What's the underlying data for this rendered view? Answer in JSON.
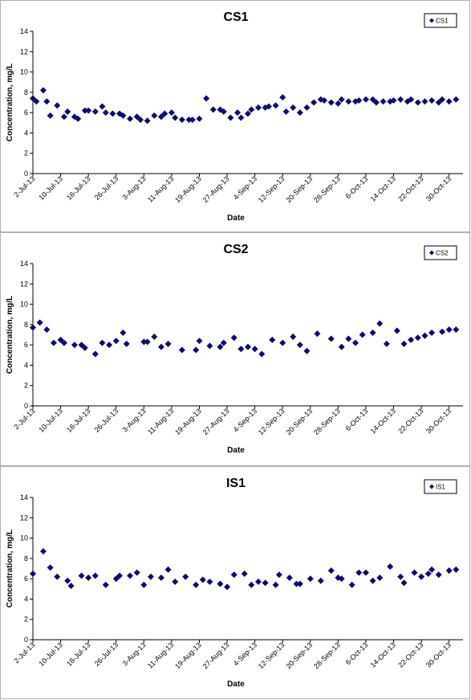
{
  "page": {
    "background": "#ffffff",
    "marker_color": "#0a0a6e"
  },
  "chart_data": [
    {
      "type": "scatter",
      "title": "CS1",
      "xlabel": "Date",
      "ylabel": "Concentration, mg/L",
      "ylim": [
        0,
        14
      ],
      "yticks": [
        0,
        2,
        4,
        6,
        8,
        10,
        12,
        14
      ],
      "xlim": [
        "2013-07-02",
        "2013-11-03"
      ],
      "xtick_labels": [
        "2-Jul-13",
        "10-Jul-13",
        "18-Jul-13",
        "26-Jul-13",
        "3-Aug-13",
        "11-Aug-13",
        "19-Aug-13",
        "27-Aug-13",
        "4-Sep-13",
        "12-Sep-13",
        "20-Sep-13",
        "28-Sep-13",
        "6-Oct-13",
        "14-Oct-13",
        "22-Oct-13",
        "30-Oct-13"
      ],
      "grid": false,
      "legend": "top-right",
      "series": [
        {
          "name": "CS1",
          "marker": "diamond",
          "color": "#0a0a6e",
          "x": [
            "2013-07-02",
            "2013-07-03",
            "2013-07-05",
            "2013-07-06",
            "2013-07-07",
            "2013-07-09",
            "2013-07-11",
            "2013-07-12",
            "2013-07-14",
            "2013-07-15",
            "2013-07-17",
            "2013-07-18",
            "2013-07-20",
            "2013-07-22",
            "2013-07-23",
            "2013-07-25",
            "2013-07-27",
            "2013-07-28",
            "2013-07-30",
            "2013-08-01",
            "2013-08-02",
            "2013-08-04",
            "2013-08-06",
            "2013-08-08",
            "2013-08-09",
            "2013-08-11",
            "2013-08-12",
            "2013-08-14",
            "2013-08-16",
            "2013-08-17",
            "2013-08-19",
            "2013-08-21",
            "2013-08-23",
            "2013-08-25",
            "2013-08-26",
            "2013-08-28",
            "2013-08-30",
            "2013-08-31",
            "2013-09-02",
            "2013-09-03",
            "2013-09-05",
            "2013-09-07",
            "2013-09-08",
            "2013-09-10",
            "2013-09-12",
            "2013-09-13",
            "2013-09-15",
            "2013-09-17",
            "2013-09-19",
            "2013-09-21",
            "2013-09-23",
            "2013-09-24",
            "2013-09-26",
            "2013-09-28",
            "2013-09-29",
            "2013-10-01",
            "2013-10-03",
            "2013-10-04",
            "2013-10-06",
            "2013-10-08",
            "2013-10-09",
            "2013-10-11",
            "2013-10-13",
            "2013-10-14",
            "2013-10-16",
            "2013-10-18",
            "2013-10-19",
            "2013-10-21",
            "2013-10-23",
            "2013-10-25",
            "2013-10-27",
            "2013-10-28",
            "2013-10-30",
            "2013-11-01"
          ],
          "y": [
            7.4,
            7.1,
            8.2,
            7.1,
            5.7,
            6.7,
            5.6,
            6.1,
            5.6,
            5.4,
            6.2,
            6.2,
            6.1,
            6.6,
            6.0,
            5.9,
            5.9,
            5.7,
            5.4,
            5.6,
            5.3,
            5.2,
            5.7,
            5.6,
            5.9,
            6.0,
            5.5,
            5.3,
            5.3,
            5.3,
            5.4,
            7.4,
            6.3,
            6.3,
            6.1,
            5.5,
            6.0,
            5.5,
            5.9,
            6.3,
            6.5,
            6.5,
            6.6,
            6.7,
            7.5,
            6.1,
            6.5,
            6.0,
            6.5,
            7.0,
            7.3,
            7.2,
            7.0,
            6.9,
            7.3,
            7.1,
            7.1,
            7.2,
            7.3,
            7.3,
            7.0,
            7.1,
            7.1,
            7.2,
            7.3,
            7.1,
            7.3,
            7.0,
            7.1,
            7.2,
            7.0,
            7.3,
            7.1,
            7.3
          ]
        }
      ]
    },
    {
      "type": "scatter",
      "title": "CS2",
      "xlabel": "Date",
      "ylabel": "Concentration, mg/L",
      "ylim": [
        0,
        14
      ],
      "yticks": [
        0,
        2,
        4,
        6,
        8,
        10,
        12,
        14
      ],
      "xlim": [
        "2013-07-02",
        "2013-11-03"
      ],
      "xtick_labels": [
        "2-Jul-13",
        "10-Jul-13",
        "18-Jul-13",
        "26-Jul-13",
        "3-Aug-13",
        "11-Aug-13",
        "19-Aug-13",
        "27-Aug-13",
        "4-Sep-13",
        "12-Sep-13",
        "20-Sep-13",
        "28-Sep-13",
        "6-Oct-13",
        "14-Oct-13",
        "22-Oct-13",
        "30-Oct-13"
      ],
      "grid": false,
      "legend": "top-right",
      "series": [
        {
          "name": "CS2",
          "marker": "diamond",
          "color": "#0a0a6e",
          "x": [
            "2013-07-02",
            "2013-07-04",
            "2013-07-06",
            "2013-07-08",
            "2013-07-10",
            "2013-07-11",
            "2013-07-14",
            "2013-07-16",
            "2013-07-17",
            "2013-07-20",
            "2013-07-22",
            "2013-07-24",
            "2013-07-26",
            "2013-07-28",
            "2013-07-29",
            "2013-08-03",
            "2013-08-04",
            "2013-08-06",
            "2013-08-08",
            "2013-08-10",
            "2013-08-14",
            "2013-08-18",
            "2013-08-19",
            "2013-08-22",
            "2013-08-25",
            "2013-08-26",
            "2013-08-29",
            "2013-08-31",
            "2013-09-02",
            "2013-09-04",
            "2013-09-06",
            "2013-09-09",
            "2013-09-12",
            "2013-09-15",
            "2013-09-17",
            "2013-09-19",
            "2013-09-22",
            "2013-09-26",
            "2013-09-29",
            "2013-10-01",
            "2013-10-03",
            "2013-10-05",
            "2013-10-08",
            "2013-10-10",
            "2013-10-12",
            "2013-10-15",
            "2013-10-17",
            "2013-10-19",
            "2013-10-21",
            "2013-10-23",
            "2013-10-25",
            "2013-10-28",
            "2013-10-30",
            "2013-11-01"
          ],
          "y": [
            7.7,
            8.2,
            7.5,
            6.2,
            6.5,
            6.2,
            6.0,
            6.0,
            5.7,
            5.1,
            6.2,
            6.0,
            6.4,
            7.2,
            6.1,
            6.3,
            6.3,
            6.8,
            5.8,
            6.1,
            5.5,
            5.5,
            6.4,
            5.9,
            5.8,
            6.2,
            6.7,
            5.6,
            5.8,
            5.6,
            5.1,
            6.5,
            6.2,
            6.8,
            6.0,
            5.4,
            7.1,
            6.6,
            5.8,
            6.6,
            6.2,
            7.0,
            7.2,
            8.1,
            6.1,
            7.4,
            6.1,
            6.5,
            6.7,
            6.9,
            7.2,
            7.3,
            7.5,
            7.5
          ]
        }
      ]
    },
    {
      "type": "scatter",
      "title": "IS1",
      "xlabel": "Date",
      "ylabel": "Concentration, mg/L",
      "ylim": [
        0,
        14
      ],
      "yticks": [
        0,
        2,
        4,
        6,
        8,
        10,
        12,
        14
      ],
      "xlim": [
        "2013-07-02",
        "2013-11-03"
      ],
      "xtick_labels": [
        "2-Jul-13",
        "10-Jul-13",
        "18-Jul-13",
        "26-Jul-13",
        "3-Aug-13",
        "11-Aug-13",
        "19-Aug-13",
        "27-Aug-13",
        "4-Sep-13",
        "12-Sep-13",
        "20-Sep-13",
        "28-Sep-13",
        "6-Oct-13",
        "14-Oct-13",
        "22-Oct-13",
        "30-Oct-13"
      ],
      "grid": false,
      "legend": "top-right",
      "series": [
        {
          "name": "IS1",
          "marker": "diamond",
          "color": "#0a0a6e",
          "x": [
            "2013-07-02",
            "2013-07-05",
            "2013-07-07",
            "2013-07-09",
            "2013-07-12",
            "2013-07-13",
            "2013-07-16",
            "2013-07-18",
            "2013-07-20",
            "2013-07-23",
            "2013-07-26",
            "2013-07-27",
            "2013-07-30",
            "2013-08-01",
            "2013-08-03",
            "2013-08-05",
            "2013-08-08",
            "2013-08-10",
            "2013-08-12",
            "2013-08-15",
            "2013-08-18",
            "2013-08-20",
            "2013-08-22",
            "2013-08-25",
            "2013-08-27",
            "2013-08-29",
            "2013-09-01",
            "2013-09-03",
            "2013-09-05",
            "2013-09-07",
            "2013-09-10",
            "2013-09-11",
            "2013-09-14",
            "2013-09-16",
            "2013-09-17",
            "2013-09-20",
            "2013-09-23",
            "2013-09-26",
            "2013-09-28",
            "2013-09-29",
            "2013-10-02",
            "2013-10-04",
            "2013-10-06",
            "2013-10-08",
            "2013-10-10",
            "2013-10-13",
            "2013-10-16",
            "2013-10-17",
            "2013-10-20",
            "2013-10-22",
            "2013-10-24",
            "2013-10-25",
            "2013-10-27",
            "2013-10-30",
            "2013-11-01"
          ],
          "y": [
            6.5,
            8.7,
            7.1,
            6.2,
            5.8,
            5.3,
            6.3,
            6.1,
            6.3,
            5.4,
            6.0,
            6.3,
            6.3,
            6.6,
            5.4,
            6.2,
            6.1,
            6.9,
            5.7,
            6.2,
            5.4,
            5.9,
            5.7,
            5.5,
            5.2,
            6.4,
            6.5,
            5.4,
            5.7,
            5.6,
            5.4,
            6.4,
            6.1,
            5.5,
            5.5,
            6.0,
            5.8,
            6.8,
            6.1,
            6.0,
            5.4,
            6.6,
            6.6,
            5.8,
            6.1,
            7.2,
            6.2,
            5.6,
            6.6,
            6.2,
            6.5,
            6.9,
            6.4,
            6.8,
            6.9
          ]
        }
      ]
    }
  ]
}
